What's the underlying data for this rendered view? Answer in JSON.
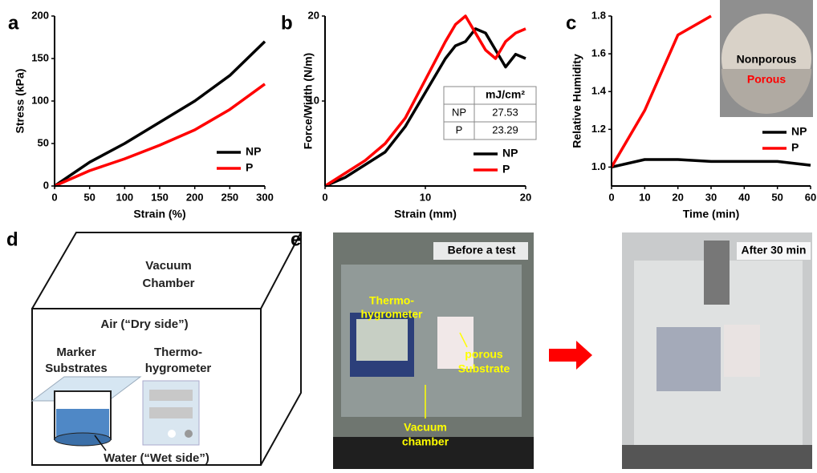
{
  "panel_labels": [
    "a",
    "b",
    "c",
    "d",
    "e"
  ],
  "chart_data": [
    {
      "type": "line",
      "xlabel": "Strain (%)",
      "ylabel": "Stress (kPa)",
      "x": [
        0,
        50,
        100,
        150,
        200,
        250,
        300
      ],
      "series": [
        {
          "name": "NP",
          "color": "#000000",
          "values": [
            0,
            28,
            50,
            75,
            100,
            130,
            170
          ]
        },
        {
          "name": "P",
          "color": "#ff0000",
          "values": [
            0,
            18,
            32,
            48,
            66,
            90,
            120
          ]
        }
      ],
      "xlim": [
        0,
        300
      ],
      "ylim": [
        0,
        200
      ],
      "xticks": [
        0,
        50,
        100,
        150,
        200,
        250,
        300
      ],
      "yticks": [
        0,
        50,
        100,
        150,
        200
      ],
      "legend": "lower right"
    },
    {
      "type": "line",
      "xlabel": "Strain (mm)",
      "ylabel": "Force/Width (N/m)",
      "x": [
        0,
        2,
        4,
        6,
        8,
        10,
        12,
        13,
        14,
        15,
        16,
        17,
        18,
        19,
        20
      ],
      "series": [
        {
          "name": "NP",
          "color": "#000000",
          "values": [
            0,
            1,
            2.5,
            4,
            7,
            11,
            15,
            16.5,
            17,
            18.5,
            18,
            16,
            14,
            15.5,
            15
          ]
        },
        {
          "name": "P",
          "color": "#ff0000",
          "values": [
            0,
            1.5,
            3,
            5,
            8,
            12.5,
            17,
            19,
            20,
            18,
            16,
            15,
            17,
            18,
            18.5
          ]
        }
      ],
      "xlim": [
        0,
        20
      ],
      "ylim": [
        0,
        20
      ],
      "xticks": [
        0,
        10,
        20
      ],
      "yticks": [
        10,
        20
      ],
      "legend": "lower right",
      "table": {
        "unit": "mJ/cm²",
        "rows": [
          [
            "NP",
            27.53
          ],
          [
            "P",
            23.29
          ]
        ]
      }
    },
    {
      "type": "line",
      "xlabel": "Time (min)",
      "ylabel": "Relative Humidity",
      "x": [
        0,
        10,
        20,
        30,
        40,
        50,
        60
      ],
      "series": [
        {
          "name": "NP",
          "color": "#000000",
          "values": [
            1.0,
            1.04,
            1.04,
            1.03,
            1.03,
            1.03,
            1.01
          ]
        },
        {
          "name": "P",
          "color": "#ff0000",
          "values": [
            1.0,
            1.3,
            1.7,
            1.8,
            null,
            null,
            null
          ]
        }
      ],
      "xlim": [
        0,
        60
      ],
      "ylim": [
        0.9,
        1.8
      ],
      "xticks": [
        0,
        10,
        20,
        30,
        40,
        50,
        60
      ],
      "yticks": [
        {
          "value": 1,
          "label": "1.0"
        },
        1.2,
        1.4,
        1.6,
        1.8
      ],
      "legend": "lower right",
      "inset": {
        "top": "Nonporous",
        "bottom": "Porous"
      }
    }
  ],
  "diagram": {
    "chamber": [
      "Vacuum",
      "Chamber"
    ],
    "air": "Air (“Dry side”)",
    "substrates": [
      "Marker",
      "Substrates"
    ],
    "meter": [
      "Thermo-",
      "hygrometer"
    ],
    "water": "Water (“Wet side”)"
  },
  "photos": {
    "before": "Before a test",
    "after": "After 30 min",
    "meter": [
      "Thermo-",
      "hygrometer"
    ],
    "substrate": [
      "porous",
      "Substrate"
    ],
    "chamber": [
      "Vacuum",
      "chamber"
    ]
  }
}
